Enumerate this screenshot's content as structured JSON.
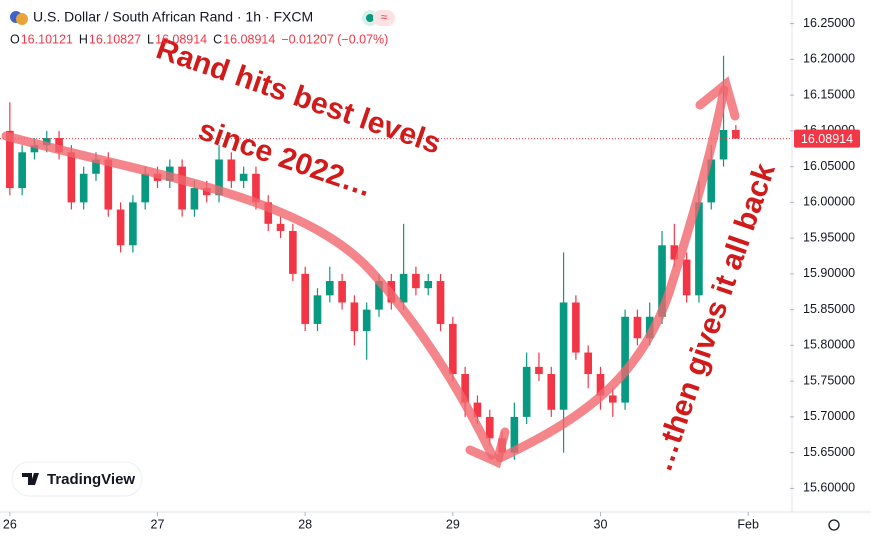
{
  "chart_data": {
    "type": "candlestick",
    "title": "U.S. Dollar / South African Rand · 1h · FXCM",
    "header": [
      {
        "label": "O",
        "value": "16.10121"
      },
      {
        "label": "H",
        "value": "16.10827"
      },
      {
        "label": "L",
        "value": "16.08914"
      },
      {
        "label": "C",
        "value": "16.08914"
      }
    ],
    "change": "−0.01207 (−0.07%)",
    "annotations": [
      "Rand hits best levels",
      "since 2022…",
      "…then gives it all back"
    ],
    "brand": "TradingView",
    "up_color": "#089981",
    "down_color": "#f23645",
    "x": [
      0,
      2,
      4,
      6,
      8,
      10,
      12,
      14,
      16,
      18,
      20,
      22,
      24,
      26,
      28,
      30,
      32,
      34,
      36,
      38,
      40,
      42,
      44,
      46,
      48,
      50,
      52,
      54,
      56,
      58,
      60,
      62,
      64,
      66,
      68,
      70,
      72,
      74,
      76,
      78,
      80,
      82,
      84,
      86,
      88,
      90,
      92,
      94,
      96,
      98,
      100,
      102,
      104,
      106,
      108,
      110,
      112,
      114,
      116,
      118
    ],
    "open": [
      16.1,
      16.02,
      16.07,
      16.08,
      16.09,
      16.07,
      16.0,
      16.04,
      16.06,
      15.99,
      15.94,
      16.0,
      16.04,
      16.03,
      16.05,
      15.99,
      16.02,
      16.01,
      16.06,
      16.03,
      16.04,
      16.0,
      15.97,
      15.96,
      15.9,
      15.83,
      15.87,
      15.89,
      15.86,
      15.82,
      15.85,
      15.89,
      15.86,
      15.9,
      15.88,
      15.89,
      15.83,
      15.76,
      15.72,
      15.7,
      15.67,
      15.65,
      15.7,
      15.77,
      15.76,
      15.71,
      15.86,
      15.79,
      15.76,
      15.73,
      15.72,
      15.84,
      15.81,
      15.84,
      15.94,
      15.92,
      15.87,
      16.0,
      16.06,
      16.10121
    ],
    "high": [
      16.14,
      16.08,
      16.09,
      16.1,
      16.1,
      16.08,
      16.05,
      16.07,
      16.07,
      16.0,
      16.01,
      16.05,
      16.05,
      16.06,
      16.06,
      16.03,
      16.03,
      16.08,
      16.07,
      16.05,
      16.05,
      16.01,
      15.98,
      15.97,
      15.91,
      15.88,
      15.91,
      15.9,
      15.87,
      15.86,
      15.9,
      15.9,
      15.97,
      15.91,
      15.9,
      15.9,
      15.84,
      15.77,
      15.73,
      15.71,
      15.68,
      15.72,
      15.79,
      15.79,
      15.77,
      15.93,
      15.87,
      15.8,
      15.77,
      15.74,
      15.85,
      15.85,
      15.86,
      15.96,
      15.97,
      15.93,
      16.03,
      16.08,
      16.205,
      16.10827
    ],
    "low": [
      16.01,
      16.01,
      16.06,
      16.07,
      16.06,
      15.99,
      15.99,
      16.03,
      15.98,
      15.93,
      15.93,
      15.99,
      16.02,
      16.02,
      15.98,
      15.98,
      16.0,
      16.0,
      16.02,
      16.02,
      15.99,
      15.96,
      15.95,
      15.89,
      15.82,
      15.82,
      15.86,
      15.85,
      15.8,
      15.78,
      15.84,
      15.85,
      15.85,
      15.87,
      15.87,
      15.82,
      15.75,
      15.7,
      15.69,
      15.66,
      15.64,
      15.64,
      15.69,
      15.75,
      15.7,
      15.65,
      15.78,
      15.74,
      15.71,
      15.7,
      15.71,
      15.8,
      15.8,
      15.83,
      15.91,
      15.86,
      15.86,
      15.99,
      16.05,
      16.08914
    ],
    "close": [
      16.02,
      16.07,
      16.08,
      16.09,
      16.07,
      16.0,
      16.04,
      16.06,
      15.99,
      15.94,
      16.0,
      16.04,
      16.03,
      16.05,
      15.99,
      16.02,
      16.01,
      16.06,
      16.03,
      16.04,
      16.0,
      15.97,
      15.96,
      15.9,
      15.83,
      15.87,
      15.89,
      15.86,
      15.82,
      15.85,
      15.89,
      15.86,
      15.9,
      15.88,
      15.89,
      15.83,
      15.76,
      15.72,
      15.7,
      15.67,
      15.65,
      15.7,
      15.77,
      15.76,
      15.71,
      15.86,
      15.79,
      15.76,
      15.73,
      15.72,
      15.84,
      15.81,
      15.84,
      15.94,
      15.92,
      15.87,
      16.0,
      16.06,
      16.10121,
      16.08914
    ],
    "xlim": [
      -1.6,
      126.8
    ],
    "xticks": [
      {
        "value": 0,
        "label": "26"
      },
      {
        "value": 24,
        "label": "27"
      },
      {
        "value": 48,
        "label": "28"
      },
      {
        "value": 72,
        "label": "29"
      },
      {
        "value": 96,
        "label": "30"
      },
      {
        "value": 120,
        "label": "Feb"
      }
    ],
    "ylim": [
      15.5698,
      16.283
    ],
    "yticks": [
      {
        "value": 15.6,
        "label": "15.60000"
      },
      {
        "value": 15.65,
        "label": "15.65000"
      },
      {
        "value": 15.7,
        "label": "15.70000"
      },
      {
        "value": 15.75,
        "label": "15.75000"
      },
      {
        "value": 15.8,
        "label": "15.80000"
      },
      {
        "value": 15.85,
        "label": "15.85000"
      },
      {
        "value": 15.9,
        "label": "15.90000"
      },
      {
        "value": 15.95,
        "label": "15.95000"
      },
      {
        "value": 16.0,
        "label": "16.00000"
      },
      {
        "value": 16.05,
        "label": "16.05000"
      },
      {
        "value": 16.1,
        "label": "16.10000"
      },
      {
        "value": 16.15,
        "label": "16.15000"
      },
      {
        "value": 16.2,
        "label": "16.20000"
      },
      {
        "value": 16.25,
        "label": "16.25000"
      }
    ],
    "grid": false
  }
}
